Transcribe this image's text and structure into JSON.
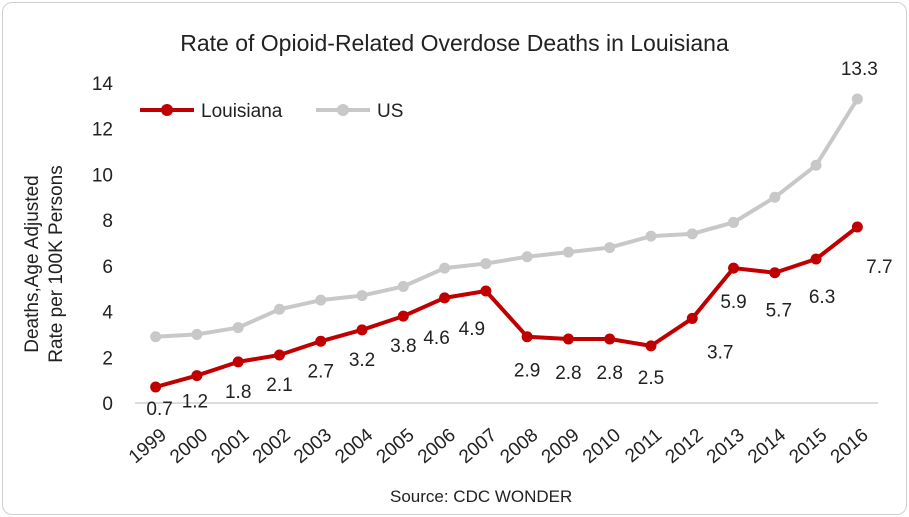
{
  "chart_data": {
    "type": "line",
    "title": "Rate of Opioid-Related Overdose Deaths in Louisiana",
    "ylabel_lines": [
      "Deaths,Age Adjusted",
      "Rate per 100K Persons"
    ],
    "xlabel": "",
    "source": "Source: CDC WONDER",
    "ylim": [
      0,
      14
    ],
    "yticks": [
      "0",
      "2",
      "4",
      "6",
      "8",
      "10",
      "12",
      "14"
    ],
    "categories": [
      "1999",
      "2000",
      "2001",
      "2002",
      "2003",
      "2004",
      "2005",
      "2006",
      "2007",
      "2008",
      "2009",
      "2010",
      "2011",
      "2012",
      "2013",
      "2014",
      "2015",
      "2016"
    ],
    "grid": false,
    "legend": "top-left",
    "series": [
      {
        "name": "Louisiana",
        "color": "#c00000",
        "values": [
          0.7,
          1.2,
          1.8,
          2.1,
          2.7,
          3.2,
          3.8,
          4.6,
          4.9,
          2.9,
          2.8,
          2.8,
          2.5,
          3.7,
          5.9,
          5.7,
          6.3,
          7.7
        ],
        "labels": [
          "0.7",
          "1.2",
          "1.8",
          "2.1",
          "2.7",
          "3.2",
          "3.8",
          "4.6",
          "4.9",
          "2.9",
          "2.8",
          "2.8",
          "2.5",
          "3.7",
          "5.9",
          "5.7",
          "6.3",
          "7.7"
        ]
      },
      {
        "name": "US",
        "color": "#c8c8c8",
        "values": [
          2.9,
          3.0,
          3.3,
          4.1,
          4.5,
          4.7,
          5.1,
          5.9,
          6.1,
          6.4,
          6.6,
          6.8,
          7.3,
          7.4,
          7.9,
          9.0,
          10.4,
          13.3
        ],
        "labels": [
          "13.3"
        ],
        "label_index": [
          17
        ]
      }
    ]
  }
}
